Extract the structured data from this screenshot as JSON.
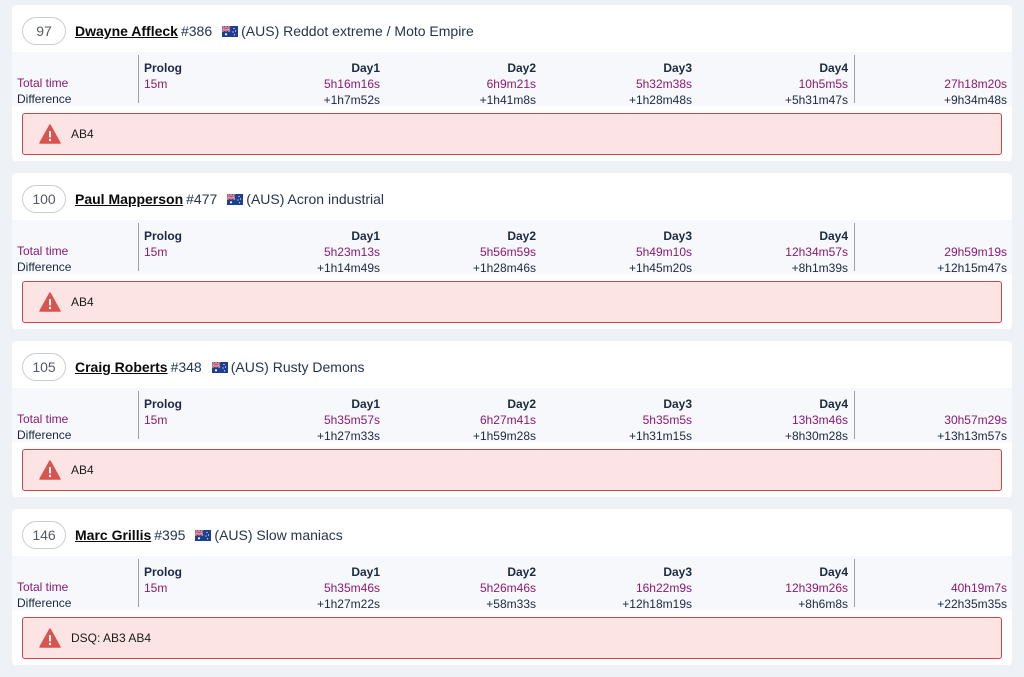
{
  "columns": {
    "prolog": "Prolog",
    "day1": "Day1",
    "day2": "Day2",
    "day3": "Day3",
    "day4": "Day4"
  },
  "labels": {
    "total_time": "Total time",
    "difference": "Difference"
  },
  "riders": [
    {
      "position": "97",
      "name": "Dwayne Affleck",
      "number": "#386",
      "team": "(AUS) Reddot extreme / Moto Empire",
      "total": {
        "prolog": "15m",
        "day1": "5h16m16s",
        "day2": "6h9m21s",
        "day3": "5h32m38s",
        "day4": "10h5m5s",
        "overall": "27h18m20s"
      },
      "diff": {
        "day1": "+1h7m52s",
        "day2": "+1h41m8s",
        "day3": "+1h28m48s",
        "day4": "+5h31m47s",
        "overall": "+9h34m48s"
      },
      "alert": "AB4"
    },
    {
      "position": "100",
      "name": "Paul Mapperson",
      "number": "#477",
      "team": "(AUS) Acron industrial",
      "total": {
        "prolog": "15m",
        "day1": "5h23m13s",
        "day2": "5h56m59s",
        "day3": "5h49m10s",
        "day4": "12h34m57s",
        "overall": "29h59m19s"
      },
      "diff": {
        "day1": "+1h14m49s",
        "day2": "+1h28m46s",
        "day3": "+1h45m20s",
        "day4": "+8h1m39s",
        "overall": "+12h15m47s"
      },
      "alert": "AB4"
    },
    {
      "position": "105",
      "name": "Craig Roberts",
      "number": "#348",
      "team": "(AUS) Rusty Demons",
      "total": {
        "prolog": "15m",
        "day1": "5h35m57s",
        "day2": "6h27m41s",
        "day3": "5h35m5s",
        "day4": "13h3m46s",
        "overall": "30h57m29s"
      },
      "diff": {
        "day1": "+1h27m33s",
        "day2": "+1h59m28s",
        "day3": "+1h31m15s",
        "day4": "+8h30m28s",
        "overall": "+13h13m57s"
      },
      "alert": "AB4"
    },
    {
      "position": "146",
      "name": "Marc Grillis",
      "number": "#395",
      "team": "(AUS) Slow maniacs",
      "total": {
        "prolog": "15m",
        "day1": "5h35m46s",
        "day2": "5h26m46s",
        "day3": "16h22m9s",
        "day4": "12h39m26s",
        "overall": "40h19m7s"
      },
      "diff": {
        "day1": "+1h27m22s",
        "day2": "+58m33s",
        "day3": "+12h18m19s",
        "day4": "+8h6m8s",
        "overall": "+22h35m35s"
      },
      "alert": "DSQ: AB3 AB4"
    }
  ],
  "icons": {
    "alert": "warning-triangle-icon",
    "flag": "australia-flag-icon"
  },
  "colors": {
    "time": "#8a1a6f",
    "alert_bg": "#fde4e4",
    "alert_border": "#c84848",
    "alert_icon": "#d9534f"
  }
}
